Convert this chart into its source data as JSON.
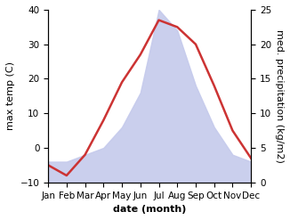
{
  "months": [
    "Jan",
    "Feb",
    "Mar",
    "Apr",
    "May",
    "Jun",
    "Jul",
    "Aug",
    "Sep",
    "Oct",
    "Nov",
    "Dec"
  ],
  "month_x": [
    1,
    2,
    3,
    4,
    5,
    6,
    7,
    8,
    9,
    10,
    11,
    12
  ],
  "temperature": [
    -5,
    -8,
    -2,
    8,
    19,
    27,
    37,
    35,
    30,
    18,
    5,
    -3
  ],
  "precipitation": [
    3,
    3,
    4,
    5,
    8,
    13,
    25,
    22,
    14,
    8,
    4,
    3
  ],
  "temp_color": "#cc3333",
  "precip_fill_color": "#c5caec",
  "temp_ylim": [
    -10,
    40
  ],
  "precip_ylim": [
    0,
    25
  ],
  "temp_yticks": [
    -10,
    0,
    10,
    20,
    30,
    40
  ],
  "precip_yticks": [
    0,
    5,
    10,
    15,
    20,
    25
  ],
  "xlabel": "date (month)",
  "ylabel_left": "max temp (C)",
  "ylabel_right": "med. precipitation (kg/m2)",
  "label_fontsize": 8,
  "tick_fontsize": 7.5
}
